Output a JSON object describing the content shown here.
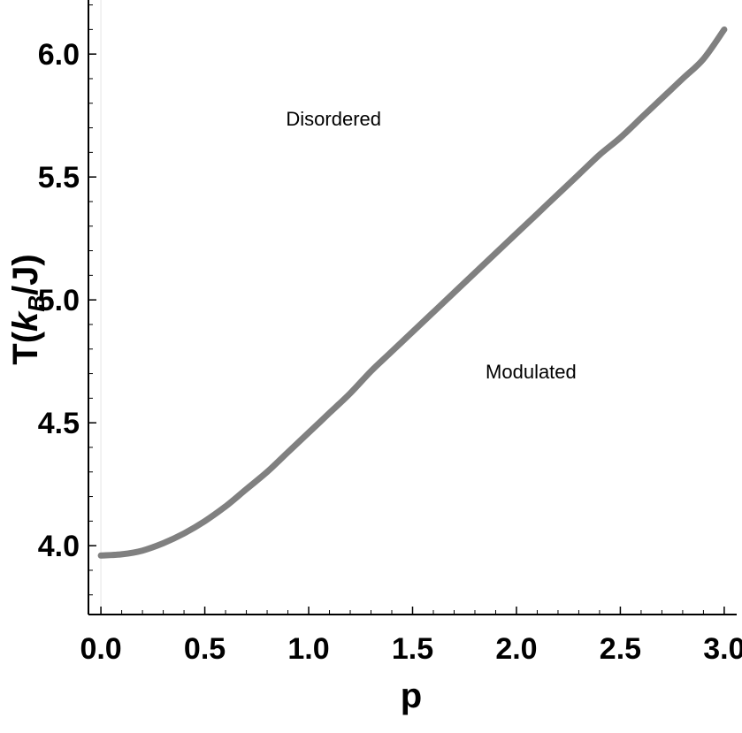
{
  "chart_data": {
    "type": "line",
    "xlabel": "p",
    "ylabel": "T(k_B/J)",
    "ylabel_main": "T(",
    "ylabel_k": "k",
    "ylabel_sub": "B",
    "ylabel_tail": "/J)",
    "xlim": [
      -0.06,
      3.06
    ],
    "ylim": [
      3.72,
      6.22
    ],
    "xticks": [
      0.0,
      0.5,
      1.0,
      1.5,
      2.0,
      2.5,
      3.0
    ],
    "xtick_labels": [
      "0.0",
      "0.5",
      "1.0",
      "1.5",
      "2.0",
      "2.5",
      "3.0"
    ],
    "yticks": [
      4.0,
      4.5,
      5.0,
      5.5,
      6.0
    ],
    "ytick_labels": [
      "4.0",
      "4.5",
      "5.0",
      "5.5",
      "6.0"
    ],
    "line_color": "#808080",
    "series": [
      {
        "x": [
          0.0,
          0.1,
          0.2,
          0.3,
          0.4,
          0.5,
          0.6,
          0.7,
          0.8,
          0.9,
          1.0,
          1.1,
          1.2,
          1.3,
          1.4,
          1.5,
          1.6,
          1.7,
          1.8,
          1.9,
          2.0,
          2.1,
          2.2,
          2.3,
          2.4,
          2.5,
          2.6,
          2.7,
          2.8,
          2.9,
          3.0
        ],
        "y": [
          3.96,
          3.965,
          3.98,
          4.01,
          4.05,
          4.1,
          4.16,
          4.23,
          4.3,
          4.38,
          4.46,
          4.54,
          4.62,
          4.71,
          4.79,
          4.87,
          4.95,
          5.03,
          5.11,
          5.19,
          5.27,
          5.35,
          5.43,
          5.51,
          5.59,
          5.66,
          5.74,
          5.82,
          5.9,
          5.98,
          6.1
        ]
      }
    ],
    "annotations": [
      {
        "text": "Disordered",
        "x": 1.12,
        "y": 5.71
      },
      {
        "text": "Modulated",
        "x": 2.07,
        "y": 4.68
      }
    ]
  }
}
